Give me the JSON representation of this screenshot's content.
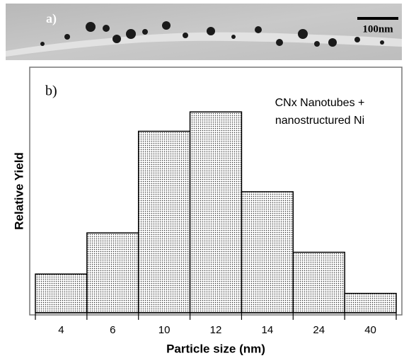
{
  "image": {
    "label": "a)",
    "scale_bar": "100nm"
  },
  "chart_data": {
    "type": "bar",
    "panel_label": "b)",
    "annotation": [
      "CNx Nanotubes +",
      "nanostructured Ni"
    ],
    "x_label": "Particle size (nm)",
    "y_label": "Relative Yield",
    "categories": [
      "4",
      "6",
      "10",
      "12",
      "14",
      "24",
      "40"
    ],
    "values": [
      16,
      33,
      75,
      83,
      50,
      25,
      8
    ],
    "color": "#333333",
    "ylim": [
      0,
      100
    ]
  }
}
